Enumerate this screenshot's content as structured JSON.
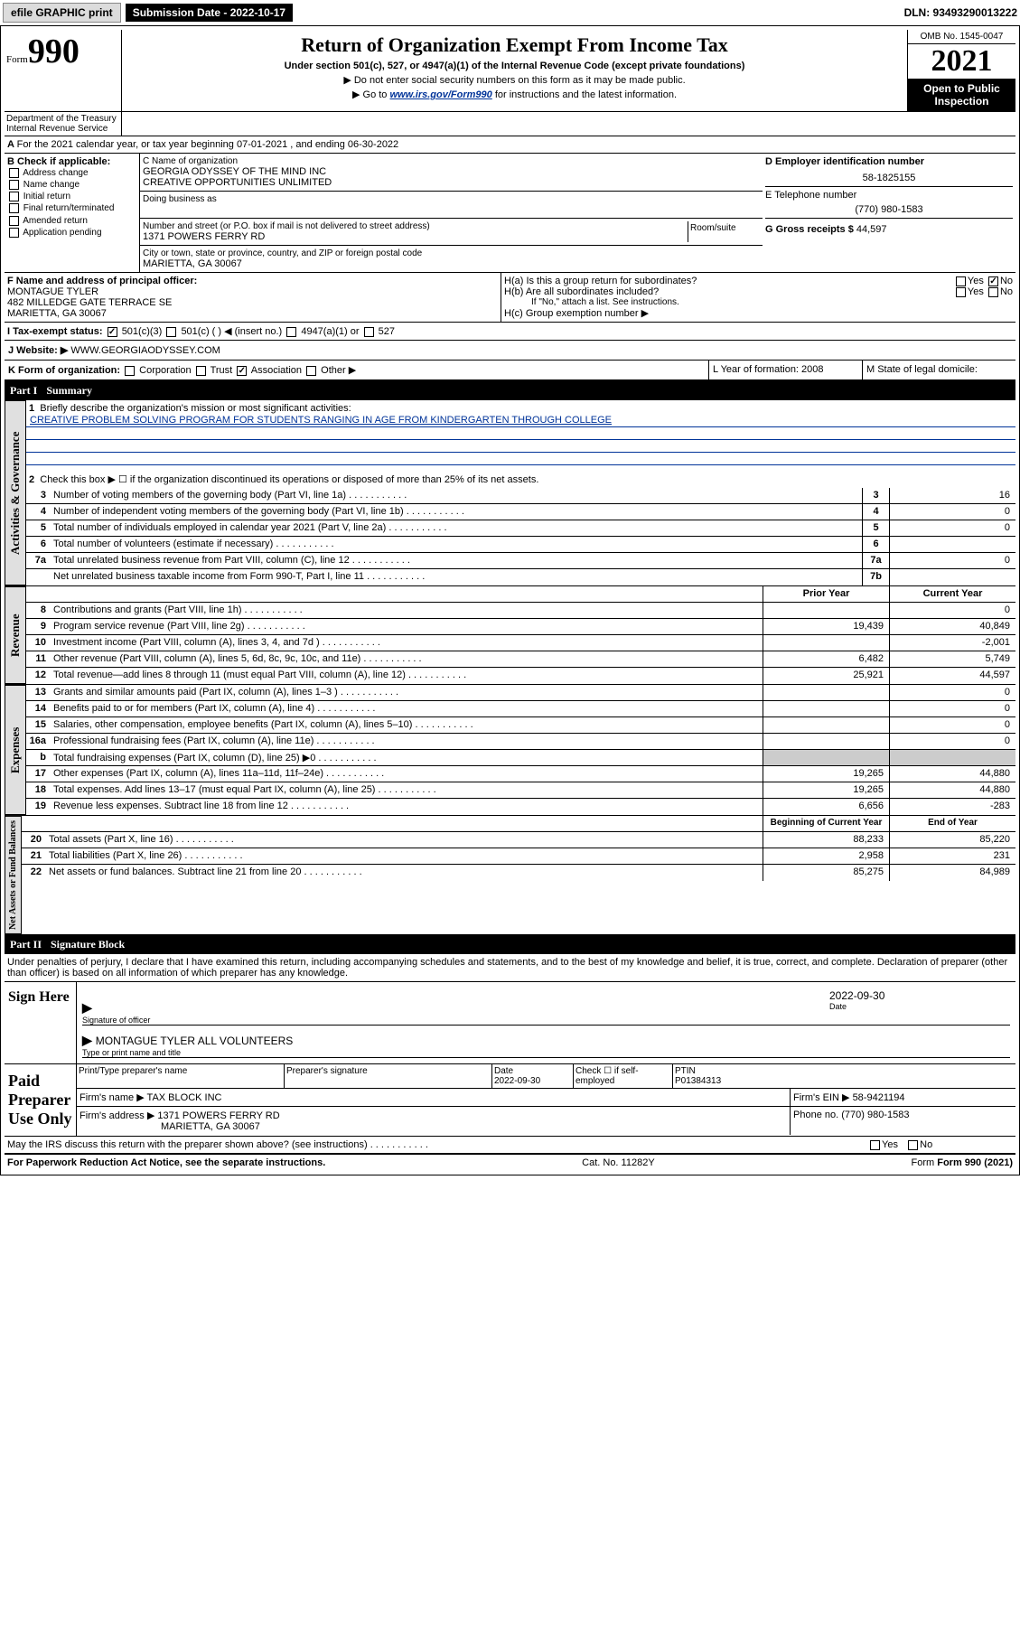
{
  "topbar": {
    "efile": "efile GRAPHIC print",
    "submission_label": "Submission Date - 2022-10-17",
    "dln": "DLN: 93493290013222"
  },
  "header": {
    "form": "Form",
    "form_num": "990",
    "title": "Return of Organization Exempt From Income Tax",
    "subtitle": "Under section 501(c), 527, or 4947(a)(1) of the Internal Revenue Code (except private foundations)",
    "note1": "▶ Do not enter social security numbers on this form as it may be made public.",
    "note2_pre": "▶ Go to ",
    "note2_link": "www.irs.gov/Form990",
    "note2_post": " for instructions and the latest information.",
    "omb": "OMB No. 1545-0047",
    "year": "2021",
    "open": "Open to Public Inspection",
    "dept": "Department of the Treasury Internal Revenue Service"
  },
  "period": {
    "text": "For the 2021 calendar year, or tax year beginning 07-01-2021  , and ending 06-30-2022"
  },
  "section_b": {
    "label": "B Check if applicable:",
    "items": [
      "Address change",
      "Name change",
      "Initial return",
      "Final return/terminated",
      "Amended return",
      "Application pending"
    ]
  },
  "section_c": {
    "name_label": "C Name of organization",
    "name1": "GEORGIA ODYSSEY OF THE MIND INC",
    "name2": "CREATIVE OPPORTUNITIES UNLIMITED",
    "dba_label": "Doing business as",
    "addr_label": "Number and street (or P.O. box if mail is not delivered to street address)",
    "room_label": "Room/suite",
    "addr": "1371 POWERS FERRY RD",
    "city_label": "City or town, state or province, country, and ZIP or foreign postal code",
    "city": "MARIETTA, GA  30067"
  },
  "section_d": {
    "label": "D Employer identification number",
    "ein": "58-1825155",
    "phone_label": "E Telephone number",
    "phone": "(770) 980-1583",
    "gross_label": "G Gross receipts $",
    "gross": "44,597"
  },
  "section_f": {
    "label": "F  Name and address of principal officer:",
    "name": "MONTAGUE TYLER",
    "addr1": "482 MILLEDGE GATE TERRACE SE",
    "addr2": "MARIETTA, GA  30067"
  },
  "section_h": {
    "ha": "H(a)  Is this a group return for subordinates?",
    "hb": "H(b)  Are all subordinates included?",
    "hb_note": "If \"No,\" attach a list. See instructions.",
    "hc": "H(c)  Group exemption number ▶",
    "yes": "Yes",
    "no": "No"
  },
  "section_i": {
    "label": "I  Tax-exempt status:",
    "opts": [
      "501(c)(3)",
      "501(c) (  ) ◀ (insert no.)",
      "4947(a)(1) or",
      "527"
    ]
  },
  "section_j": {
    "label": "J  Website: ▶",
    "value": "WWW.GEORGIAODYSSEY.COM"
  },
  "section_k": {
    "label": "K Form of organization:",
    "opts": [
      "Corporation",
      "Trust",
      "Association",
      "Other ▶"
    ]
  },
  "section_l": {
    "label": "L Year of formation: 2008"
  },
  "section_m": {
    "label": "M State of legal domicile:"
  },
  "part1": {
    "header": "Part I",
    "title": "Summary",
    "line1_label": "Briefly describe the organization's mission or most significant activities:",
    "mission": "CREATIVE PROBLEM SOLVING PROGRAM FOR STUDENTS RANGING IN AGE FROM KINDERGARTEN THROUGH COLLEGE",
    "line2": "Check this box ▶ ☐  if the organization discontinued its operations or disposed of more than 25% of its net assets.",
    "lines_gov": [
      {
        "n": "3",
        "d": "Number of voting members of the governing body (Part VI, line 1a)",
        "k": "3",
        "v": "16"
      },
      {
        "n": "4",
        "d": "Number of independent voting members of the governing body (Part VI, line 1b)",
        "k": "4",
        "v": "0"
      },
      {
        "n": "5",
        "d": "Total number of individuals employed in calendar year 2021 (Part V, line 2a)",
        "k": "5",
        "v": "0"
      },
      {
        "n": "6",
        "d": "Total number of volunteers (estimate if necessary)",
        "k": "6",
        "v": ""
      },
      {
        "n": "7a",
        "d": "Total unrelated business revenue from Part VIII, column (C), line 12",
        "k": "7a",
        "v": "0"
      },
      {
        "n": "",
        "d": "Net unrelated business taxable income from Form 990-T, Part I, line 11",
        "k": "7b",
        "v": ""
      }
    ],
    "col_head_prior": "Prior Year",
    "col_head_current": "Current Year",
    "lines_rev": [
      {
        "n": "8",
        "d": "Contributions and grants (Part VIII, line 1h)",
        "p": "",
        "c": "0"
      },
      {
        "n": "9",
        "d": "Program service revenue (Part VIII, line 2g)",
        "p": "19,439",
        "c": "40,849"
      },
      {
        "n": "10",
        "d": "Investment income (Part VIII, column (A), lines 3, 4, and 7d )",
        "p": "",
        "c": "-2,001"
      },
      {
        "n": "11",
        "d": "Other revenue (Part VIII, column (A), lines 5, 6d, 8c, 9c, 10c, and 11e)",
        "p": "6,482",
        "c": "5,749"
      },
      {
        "n": "12",
        "d": "Total revenue—add lines 8 through 11 (must equal Part VIII, column (A), line 12)",
        "p": "25,921",
        "c": "44,597"
      }
    ],
    "lines_exp": [
      {
        "n": "13",
        "d": "Grants and similar amounts paid (Part IX, column (A), lines 1–3 )",
        "p": "",
        "c": "0"
      },
      {
        "n": "14",
        "d": "Benefits paid to or for members (Part IX, column (A), line 4)",
        "p": "",
        "c": "0"
      },
      {
        "n": "15",
        "d": "Salaries, other compensation, employee benefits (Part IX, column (A), lines 5–10)",
        "p": "",
        "c": "0"
      },
      {
        "n": "16a",
        "d": "Professional fundraising fees (Part IX, column (A), line 11e)",
        "p": "",
        "c": "0"
      },
      {
        "n": "b",
        "d": "Total fundraising expenses (Part IX, column (D), line 25) ▶0",
        "p": "shaded",
        "c": "shaded"
      },
      {
        "n": "17",
        "d": "Other expenses (Part IX, column (A), lines 11a–11d, 11f–24e)",
        "p": "19,265",
        "c": "44,880"
      },
      {
        "n": "18",
        "d": "Total expenses. Add lines 13–17 (must equal Part IX, column (A), line 25)",
        "p": "19,265",
        "c": "44,880"
      },
      {
        "n": "19",
        "d": "Revenue less expenses. Subtract line 18 from line 12",
        "p": "6,656",
        "c": "-283"
      }
    ],
    "col_head_begin": "Beginning of Current Year",
    "col_head_end": "End of Year",
    "lines_net": [
      {
        "n": "20",
        "d": "Total assets (Part X, line 16)",
        "p": "88,233",
        "c": "85,220"
      },
      {
        "n": "21",
        "d": "Total liabilities (Part X, line 26)",
        "p": "2,958",
        "c": "231"
      },
      {
        "n": "22",
        "d": "Net assets or fund balances. Subtract line 21 from line 20",
        "p": "85,275",
        "c": "84,989"
      }
    ]
  },
  "vtabs": {
    "gov": "Activities & Governance",
    "rev": "Revenue",
    "exp": "Expenses",
    "net": "Net Assets or Fund Balances"
  },
  "part2": {
    "header": "Part II",
    "title": "Signature Block",
    "penalties": "Under penalties of perjury, I declare that I have examined this return, including accompanying schedules and statements, and to the best of my knowledge and belief, it is true, correct, and complete. Declaration of preparer (other than officer) is based on all information of which preparer has any knowledge."
  },
  "sign": {
    "label": "Sign Here",
    "sig_officer": "Signature of officer",
    "date": "2022-09-30",
    "date_label": "Date",
    "name": "MONTAGUE TYLER  ALL VOLUNTEERS",
    "name_label": "Type or print name and title"
  },
  "paid": {
    "label": "Paid Preparer Use Only",
    "col1": "Print/Type preparer's name",
    "col2": "Preparer's signature",
    "col3_label": "Date",
    "col3": "2022-09-30",
    "col4": "Check ☐ if self-employed",
    "ptin_label": "PTIN",
    "ptin": "P01384313",
    "firm_name_label": "Firm's name   ▶",
    "firm_name": "TAX BLOCK INC",
    "firm_ein_label": "Firm's EIN ▶",
    "firm_ein": "58-9421194",
    "firm_addr_label": "Firm's address ▶",
    "firm_addr1": "1371 POWERS FERRY RD",
    "firm_addr2": "MARIETTA, GA  30067",
    "firm_phone_label": "Phone no.",
    "firm_phone": "(770) 980-1583"
  },
  "discuss": {
    "q": "May the IRS discuss this return with the preparer shown above? (see instructions)",
    "yes": "Yes",
    "no": "No"
  },
  "footer": {
    "left": "For Paperwork Reduction Act Notice, see the separate instructions.",
    "mid": "Cat. No. 11282Y",
    "right": "Form 990 (2021)"
  }
}
